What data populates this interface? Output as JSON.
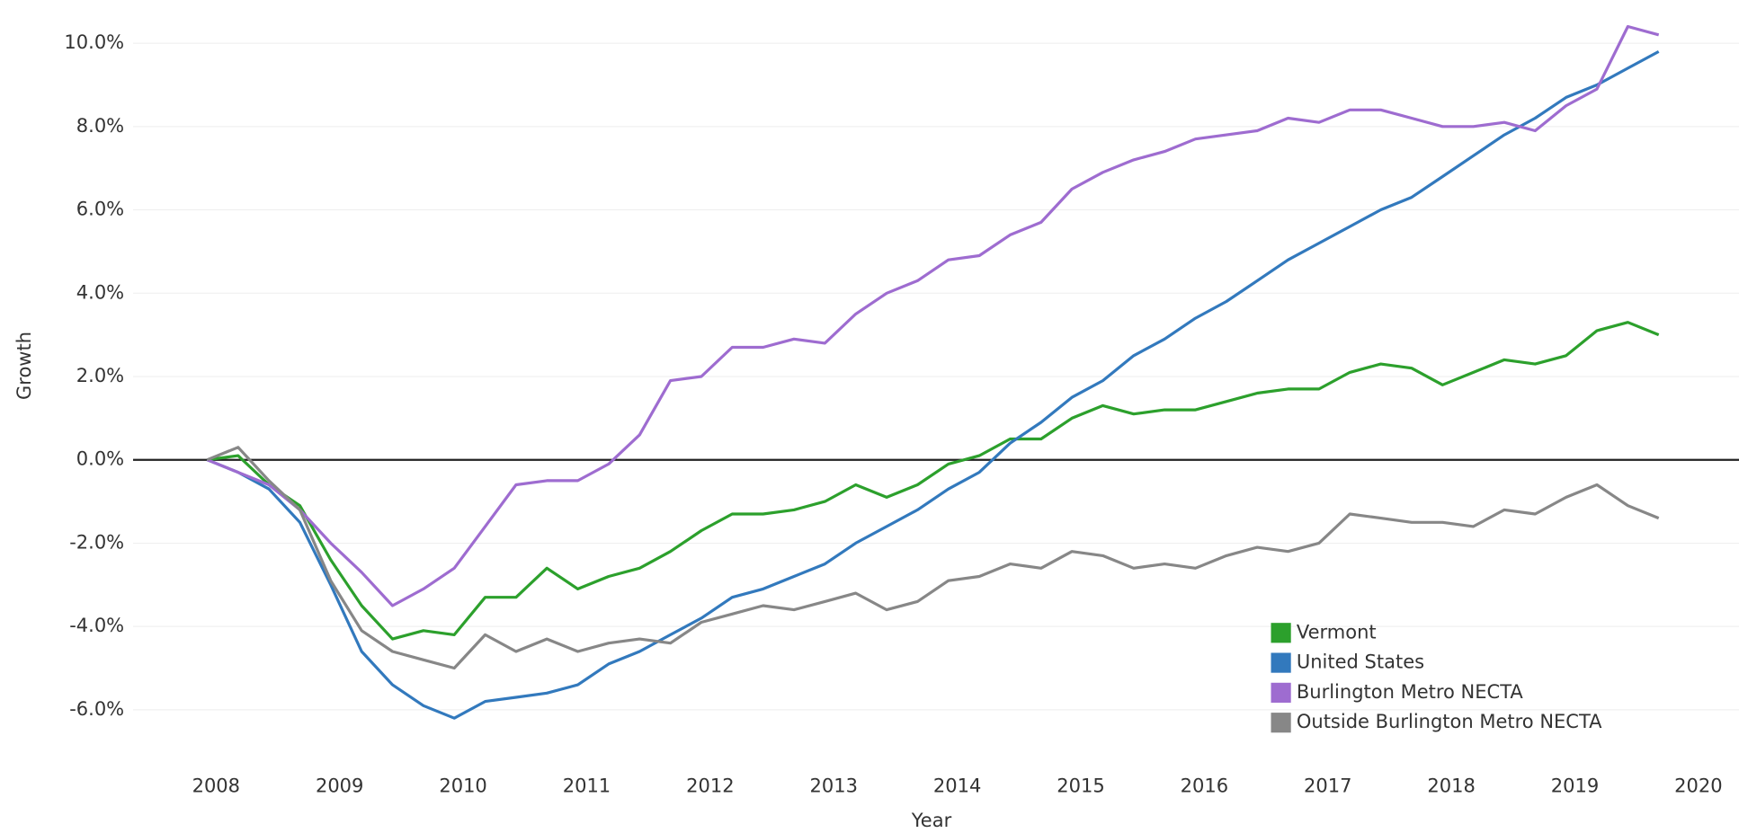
{
  "chart_data": {
    "type": "line",
    "x_label": "Year",
    "y_label": "Growth",
    "x": [
      2008,
      2008.25,
      2008.5,
      2008.75,
      2009,
      2009.25,
      2009.5,
      2009.75,
      2010,
      2010.25,
      2010.5,
      2010.75,
      2011,
      2011.25,
      2011.5,
      2011.75,
      2012,
      2012.25,
      2012.5,
      2012.75,
      2013,
      2013.25,
      2013.5,
      2013.75,
      2014,
      2014.25,
      2014.5,
      2014.75,
      2015,
      2015.25,
      2015.5,
      2015.75,
      2016,
      2016.25,
      2016.5,
      2016.75,
      2017,
      2017.25,
      2017.5,
      2017.75,
      2018,
      2018.25,
      2018.5,
      2018.75,
      2019,
      2019.25,
      2019.5,
      2019.75
    ],
    "series": [
      {
        "name": "Vermont",
        "color": "#2ca02c",
        "values": [
          0,
          0.1,
          -0.6,
          -1.1,
          -2.4,
          -3.5,
          -4.3,
          -4.1,
          -4.2,
          -3.3,
          -3.3,
          -2.6,
          -3.1,
          -2.8,
          -2.6,
          -2.2,
          -1.7,
          -1.3,
          -1.3,
          -1.2,
          -1.0,
          -0.6,
          -0.9,
          -0.6,
          -0.1,
          0.1,
          0.5,
          0.5,
          1.0,
          1.3,
          1.1,
          1.2,
          1.2,
          1.4,
          1.6,
          1.7,
          1.7,
          2.1,
          2.3,
          2.2,
          1.8,
          2.1,
          2.4,
          2.3,
          2.5,
          3.1,
          3.3,
          3.0
        ]
      },
      {
        "name": "United States",
        "color": "#3279bd",
        "values": [
          0,
          -0.3,
          -0.7,
          -1.5,
          -3.0,
          -4.6,
          -5.4,
          -5.9,
          -6.2,
          -5.8,
          -5.7,
          -5.6,
          -5.4,
          -4.9,
          -4.6,
          -4.2,
          -3.8,
          -3.3,
          -3.1,
          -2.8,
          -2.5,
          -2.0,
          -1.6,
          -1.2,
          -0.7,
          -0.3,
          0.4,
          0.9,
          1.5,
          1.9,
          2.5,
          2.9,
          3.4,
          3.8,
          4.3,
          4.8,
          5.2,
          5.6,
          6.0,
          6.3,
          6.8,
          7.3,
          7.8,
          8.2,
          8.7,
          9.0,
          9.4,
          9.8
        ]
      },
      {
        "name": "Burlington Metro NECTA",
        "color": "#9e6cd0",
        "values": [
          0,
          -0.3,
          -0.6,
          -1.2,
          -2.0,
          -2.7,
          -3.5,
          -3.1,
          -2.6,
          -1.6,
          -0.6,
          -0.5,
          -0.5,
          -0.1,
          0.6,
          1.9,
          2.0,
          2.7,
          2.7,
          2.9,
          2.8,
          3.5,
          4.0,
          4.3,
          4.8,
          4.9,
          5.4,
          5.7,
          6.5,
          6.9,
          7.2,
          7.4,
          7.7,
          7.8,
          7.9,
          8.2,
          8.1,
          8.4,
          8.4,
          8.2,
          8.0,
          8.0,
          8.1,
          7.9,
          8.5,
          8.9,
          10.4,
          10.2
        ]
      },
      {
        "name": "Outside Burlington Metro NECTA",
        "color": "#878787",
        "values": [
          0,
          0.3,
          -0.5,
          -1.2,
          -2.9,
          -4.1,
          -4.6,
          -4.8,
          -5.0,
          -4.2,
          -4.6,
          -4.3,
          -4.6,
          -4.4,
          -4.3,
          -4.4,
          -3.9,
          -3.7,
          -3.5,
          -3.6,
          -3.4,
          -3.2,
          -3.6,
          -3.4,
          -2.9,
          -2.8,
          -2.5,
          -2.6,
          -2.2,
          -2.3,
          -2.6,
          -2.5,
          -2.6,
          -2.3,
          -2.1,
          -2.2,
          -2.0,
          -1.3,
          -1.4,
          -1.5,
          -1.5,
          -1.6,
          -1.2,
          -1.3,
          -0.9,
          -0.6,
          -1.1,
          -1.4
        ]
      }
    ],
    "xlim": [
      2007.4,
      2020.4
    ],
    "xticks": [
      2008,
      2009,
      2010,
      2011,
      2012,
      2013,
      2014,
      2015,
      2016,
      2017,
      2018,
      2019,
      2020
    ],
    "ylim": [
      -7,
      11
    ],
    "yticks": [
      {
        "value": -6,
        "label": "-6.0%"
      },
      {
        "value": -4,
        "label": "-4.0%"
      },
      {
        "value": -2,
        "label": "-2.0%"
      },
      {
        "value": 0,
        "label": "0.0%"
      },
      {
        "value": 2,
        "label": "2.0%"
      },
      {
        "value": 4,
        "label": "4.0%"
      },
      {
        "value": 6,
        "label": "6.0%"
      },
      {
        "value": 8,
        "label": "8.0%"
      },
      {
        "value": 10,
        "label": "10.0%"
      }
    ],
    "grid": true,
    "legend": "lower right"
  }
}
